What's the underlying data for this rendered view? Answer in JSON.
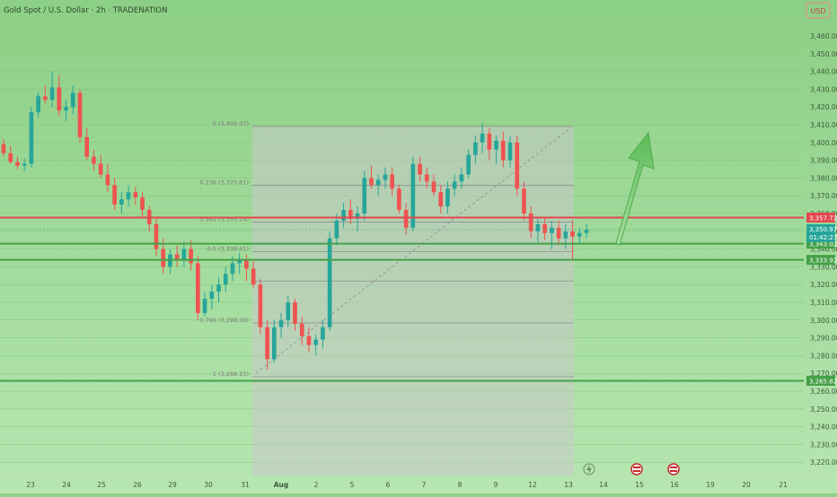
{
  "header": {
    "title": "Gold Spot / U.S. Dollar · 2h · TRADENATION",
    "currency": "USD"
  },
  "colors": {
    "bg_top": "#8ccf86",
    "bg_bottom": "#b7e6b1",
    "up": "#26a69a",
    "down": "#ef5350",
    "resistance": "#e2474e",
    "support": "#43a047",
    "fib_zone": "#c9c9c9",
    "fib_line": "#8d8d8d",
    "arrow": "#6dc46a",
    "tag_text": "#ffffff"
  },
  "chart_data": {
    "type": "candlestick",
    "symbol": "Gold Spot / U.S. Dollar",
    "interval": "2h",
    "broker": "TRADENATION",
    "y_axis": {
      "ticks": [
        3460,
        3450,
        3440,
        3430,
        3420,
        3410,
        3400,
        3390,
        3380,
        3370,
        3360,
        3350,
        3340,
        3330,
        3320,
        3310,
        3300,
        3290,
        3280,
        3270,
        3260,
        3250,
        3240,
        3230,
        3220
      ],
      "format": "comma2"
    },
    "x_axis": {
      "labels": [
        "23",
        "24",
        "25",
        "26",
        "29",
        "30",
        "31",
        "Aug",
        "2",
        "5",
        "6",
        "7",
        "8",
        "9",
        "12",
        "13",
        "14",
        "15",
        "16",
        "19",
        "20",
        "21"
      ]
    },
    "levels": [
      {
        "name": "resistance",
        "value": 3357.72,
        "label": "3,357.72",
        "color": "#e2474e"
      },
      {
        "name": "support-1",
        "value": 3343.02,
        "label": "3,343.02",
        "color": "#43a047"
      },
      {
        "name": "support-2",
        "value": 3333.92,
        "label": "3,333.92",
        "color": "#43a047"
      },
      {
        "name": "support-3",
        "value": 3265.82,
        "label": "3,265.82",
        "color": "#43a047"
      }
    ],
    "current_price": {
      "value": 3350.97,
      "label": "3,350.97",
      "countdown": "01:42:27",
      "color": "#26a69a"
    },
    "fibonacci": {
      "from_price": 3409.07,
      "to_price": 3268.15,
      "levels": [
        {
          "ratio": "0",
          "price": 3409.07,
          "label": "0 (3,409.07)"
        },
        {
          "ratio": "0.236",
          "price": 3375.81,
          "label": "0.236 (3,375.81)"
        },
        {
          "ratio": "0.382",
          "price": 3355.24,
          "label": "0.382 (3,355.24)"
        },
        {
          "ratio": "0.5",
          "price": 3338.61,
          "label": "0.5 (3,338.61)"
        },
        {
          "ratio": "0.618",
          "price": 3321.98,
          "label": ""
        },
        {
          "ratio": "0.786",
          "price": 3298.39,
          "label": "0.786 (3,298.39)"
        },
        {
          "ratio": "1",
          "price": 3268.15,
          "label": "1 (3,268.15)"
        }
      ]
    },
    "projection": "up-arrow",
    "event_markers": [
      "flash",
      "US",
      "US"
    ],
    "series": [
      [
        3399,
        3402,
        3392,
        3394
      ],
      [
        3394,
        3398,
        3388,
        3389
      ],
      [
        3389,
        3392,
        3385,
        3387
      ],
      [
        3387,
        3391,
        3384,
        3388
      ],
      [
        3388,
        3420,
        3386,
        3417
      ],
      [
        3417,
        3428,
        3414,
        3426
      ],
      [
        3426,
        3432,
        3422,
        3424
      ],
      [
        3424,
        3440,
        3420,
        3431
      ],
      [
        3431,
        3438,
        3415,
        3418
      ],
      [
        3418,
        3424,
        3412,
        3420
      ],
      [
        3420,
        3432,
        3416,
        3428
      ],
      [
        3428,
        3430,
        3400,
        3403
      ],
      [
        3403,
        3408,
        3390,
        3392
      ],
      [
        3392,
        3396,
        3384,
        3388
      ],
      [
        3388,
        3393,
        3380,
        3382
      ],
      [
        3382,
        3388,
        3372,
        3376
      ],
      [
        3376,
        3380,
        3362,
        3365
      ],
      [
        3365,
        3372,
        3360,
        3368
      ],
      [
        3368,
        3376,
        3364,
        3372
      ],
      [
        3372,
        3375,
        3365,
        3369
      ],
      [
        3369,
        3372,
        3358,
        3362
      ],
      [
        3362,
        3364,
        3350,
        3354
      ],
      [
        3354,
        3358,
        3336,
        3340
      ],
      [
        3340,
        3346,
        3326,
        3330
      ],
      [
        3330,
        3340,
        3326,
        3337
      ],
      [
        3337,
        3342,
        3330,
        3334
      ],
      [
        3334,
        3344,
        3330,
        3340
      ],
      [
        3340,
        3345,
        3328,
        3332
      ],
      [
        3332,
        3336,
        3300,
        3304
      ],
      [
        3304,
        3316,
        3302,
        3312
      ],
      [
        3312,
        3320,
        3306,
        3316
      ],
      [
        3316,
        3324,
        3310,
        3320
      ],
      [
        3320,
        3330,
        3316,
        3326
      ],
      [
        3326,
        3336,
        3322,
        3332
      ],
      [
        3332,
        3338,
        3326,
        3334
      ],
      [
        3334,
        3337,
        3322,
        3329
      ],
      [
        3329,
        3333,
        3318,
        3320
      ],
      [
        3320,
        3323,
        3292,
        3296
      ],
      [
        3296,
        3300,
        3272,
        3278
      ],
      [
        3278,
        3300,
        3276,
        3296
      ],
      [
        3296,
        3304,
        3290,
        3300
      ],
      [
        3300,
        3314,
        3296,
        3310
      ],
      [
        3310,
        3312,
        3294,
        3298
      ],
      [
        3298,
        3302,
        3286,
        3291
      ],
      [
        3291,
        3296,
        3282,
        3286
      ],
      [
        3286,
        3292,
        3280,
        3289
      ],
      [
        3289,
        3300,
        3284,
        3296
      ],
      [
        3296,
        3350,
        3294,
        3346
      ],
      [
        3346,
        3360,
        3342,
        3356
      ],
      [
        3356,
        3366,
        3352,
        3362
      ],
      [
        3362,
        3368,
        3354,
        3357
      ],
      [
        3357,
        3364,
        3350,
        3360
      ],
      [
        3360,
        3384,
        3356,
        3380
      ],
      [
        3380,
        3387,
        3374,
        3376
      ],
      [
        3376,
        3382,
        3370,
        3379
      ],
      [
        3379,
        3386,
        3374,
        3382
      ],
      [
        3382,
        3386,
        3370,
        3374
      ],
      [
        3374,
        3376,
        3360,
        3362
      ],
      [
        3362,
        3366,
        3348,
        3352
      ],
      [
        3352,
        3392,
        3350,
        3388
      ],
      [
        3388,
        3392,
        3378,
        3382
      ],
      [
        3382,
        3386,
        3374,
        3378
      ],
      [
        3378,
        3382,
        3370,
        3372
      ],
      [
        3372,
        3376,
        3360,
        3364
      ],
      [
        3364,
        3378,
        3360,
        3374
      ],
      [
        3374,
        3382,
        3370,
        3378
      ],
      [
        3378,
        3386,
        3374,
        3382
      ],
      [
        3382,
        3396,
        3380,
        3393
      ],
      [
        3393,
        3404,
        3388,
        3400
      ],
      [
        3400,
        3411,
        3394,
        3405
      ],
      [
        3405,
        3408,
        3390,
        3396
      ],
      [
        3396,
        3404,
        3388,
        3401
      ],
      [
        3401,
        3406,
        3386,
        3390
      ],
      [
        3390,
        3404,
        3386,
        3400
      ],
      [
        3400,
        3404,
        3370,
        3374
      ],
      [
        3374,
        3378,
        3356,
        3360
      ],
      [
        3360,
        3364,
        3346,
        3350
      ],
      [
        3350,
        3358,
        3344,
        3354
      ],
      [
        3354,
        3358,
        3345,
        3349
      ],
      [
        3349,
        3356,
        3340,
        3352
      ],
      [
        3352,
        3356,
        3342,
        3346
      ],
      [
        3346,
        3354,
        3340,
        3350
      ],
      [
        3350,
        3356,
        3334,
        3347
      ],
      [
        3347,
        3352,
        3343,
        3349
      ],
      [
        3349,
        3354,
        3346,
        3351
      ]
    ]
  }
}
